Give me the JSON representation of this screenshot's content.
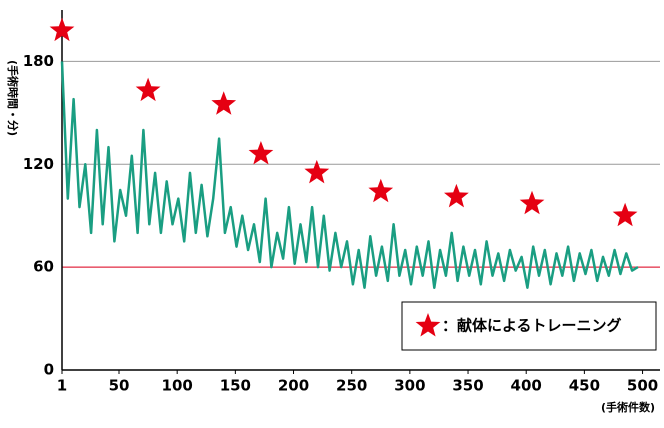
{
  "chart_data": {
    "type": "line",
    "y_label": "(手術時間・分)",
    "x_label": "(手術件数)",
    "xlim": [
      1,
      515
    ],
    "ylim": [
      0,
      210
    ],
    "xticks": [
      1,
      50,
      100,
      150,
      200,
      250,
      300,
      350,
      400,
      450,
      500
    ],
    "yticks": [
      0,
      60,
      120,
      180
    ],
    "grid": true,
    "grid_color": "#999999",
    "ref_line": {
      "value": 60,
      "color": "#e8324a"
    },
    "legend": "bottom-right",
    "series": [
      {
        "color": "#1a9e82",
        "mode": "line",
        "x": [
          1,
          6,
          11,
          16,
          21,
          26,
          31,
          36,
          41,
          46,
          51,
          56,
          61,
          66,
          71,
          76,
          81,
          86,
          91,
          96,
          101,
          106,
          111,
          116,
          121,
          126,
          131,
          136,
          141,
          146,
          151,
          156,
          161,
          166,
          171,
          176,
          181,
          186,
          191,
          196,
          201,
          206,
          211,
          216,
          221,
          226,
          231,
          236,
          241,
          246,
          251,
          256,
          261,
          266,
          271,
          276,
          281,
          286,
          291,
          296,
          301,
          306,
          311,
          316,
          321,
          326,
          331,
          336,
          341,
          346,
          351,
          356,
          361,
          366,
          371,
          376,
          381,
          386,
          391,
          396,
          401,
          406,
          411,
          416,
          421,
          426,
          431,
          436,
          441,
          446,
          451,
          456,
          461,
          466,
          471,
          476,
          481,
          486,
          491,
          496
        ],
        "values": [
          180,
          100,
          158,
          95,
          120,
          80,
          140,
          85,
          130,
          75,
          105,
          90,
          125,
          80,
          140,
          85,
          115,
          80,
          110,
          85,
          100,
          75,
          115,
          80,
          108,
          78,
          100,
          135,
          80,
          95,
          72,
          90,
          70,
          85,
          63,
          100,
          60,
          80,
          65,
          95,
          62,
          85,
          63,
          95,
          60,
          90,
          58,
          80,
          60,
          75,
          50,
          70,
          48,
          78,
          55,
          72,
          52,
          85,
          55,
          70,
          50,
          72,
          55,
          75,
          48,
          70,
          55,
          80,
          52,
          72,
          55,
          70,
          50,
          75,
          55,
          68,
          52,
          70,
          58,
          66,
          48,
          72,
          55,
          70,
          50,
          68,
          55,
          72,
          52,
          68,
          56,
          70,
          52,
          66,
          55,
          70,
          56,
          68,
          58,
          60
        ]
      },
      {
        "name": "：献体によるトレーニング",
        "color": "#e50012",
        "mode": "star",
        "x": [
          1,
          75,
          140,
          172,
          220,
          275,
          340,
          405,
          485
        ],
        "values": [
          198,
          163,
          155,
          126,
          115,
          104,
          101,
          97,
          90
        ]
      }
    ]
  }
}
